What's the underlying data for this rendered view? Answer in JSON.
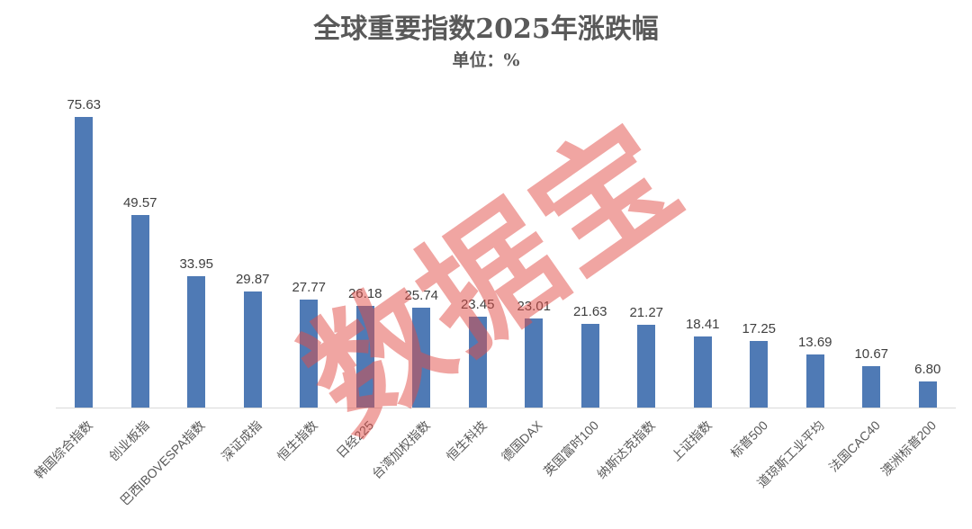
{
  "chart_data": {
    "type": "bar",
    "title": "全球重要指数2025年涨跌幅",
    "subtitle": "单位：%",
    "categories": [
      "韩国综合指数",
      "创业板指",
      "巴西IBOVESPA指数",
      "深证成指",
      "恒生指数",
      "日经225",
      "台湾加权指数",
      "恒生科技",
      "德国DAX",
      "英国富时100",
      "纳斯达克指数",
      "上证指数",
      "标普500",
      "道琼斯工业平均",
      "法国CAC40",
      "澳洲标普200"
    ],
    "values": [
      75.63,
      49.57,
      33.95,
      29.87,
      27.77,
      26.18,
      25.74,
      23.45,
      23.01,
      21.63,
      21.27,
      18.41,
      17.25,
      13.69,
      10.67,
      6.8
    ],
    "xlabel": "",
    "ylabel": "",
    "ylim": [
      0,
      80
    ],
    "grid": false,
    "legend": false,
    "value_label_decimals": 2,
    "category_label_rotation_deg": -45,
    "watermark_text": "数据宝",
    "colors": {
      "bar": "#4f7ab5",
      "title": "#595959",
      "value_label": "#3f3f3f",
      "category_label": "#595959",
      "axis_line": "#d9d9d9",
      "watermark": "rgba(225,75,70,0.5)"
    }
  }
}
